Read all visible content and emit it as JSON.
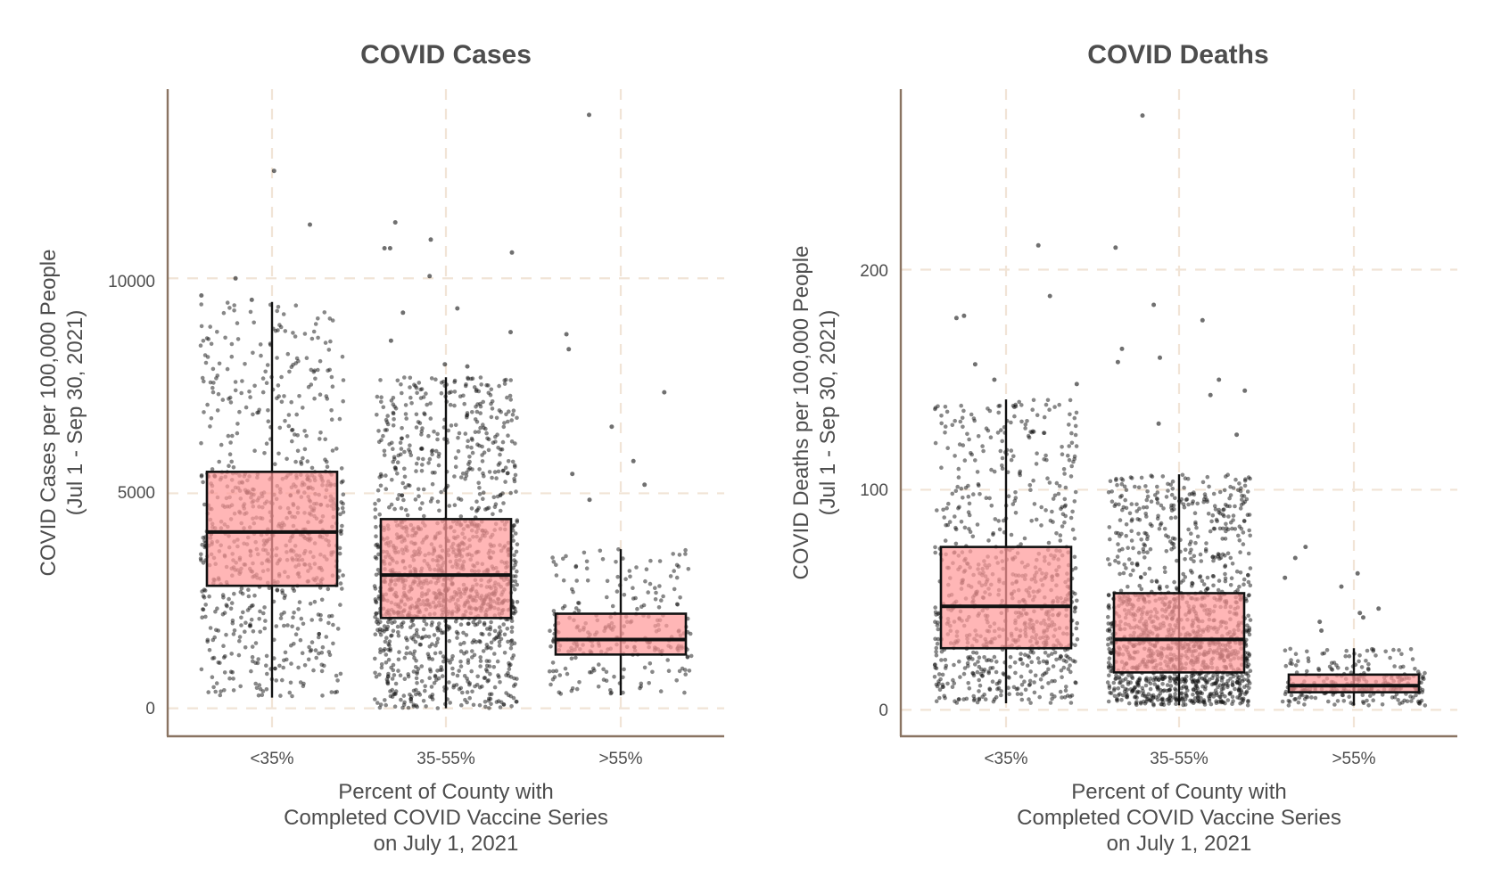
{
  "colors": {
    "box_fill": "#ff9a9a",
    "box_stroke": "#111111",
    "point": "#111111",
    "grid": "#f1e4d6",
    "axis": "#8a7462",
    "text": "#4d4d4d"
  },
  "chart_data": [
    {
      "type": "box",
      "title": "COVID Cases",
      "categories": [
        "<35%",
        "35-55%",
        ">55%"
      ],
      "xlabel_lines": [
        "Percent of County with",
        "Completed COVID Vaccine Series",
        "on July 1, 2021"
      ],
      "ylabel_lines": [
        "COVID Cases per 100,000 People",
        "(Jul 1 - Sep 30, 2021)"
      ],
      "yticks": [
        0,
        5000,
        10000
      ],
      "ytick_labels": [
        "0",
        "5000",
        "10000"
      ],
      "ylim": [
        -650,
        14400
      ],
      "grid": true,
      "jitter_points": true,
      "series": [
        {
          "name": "<35%",
          "q1": 2850,
          "median": 4100,
          "q3": 5500,
          "whisker_low": 250,
          "whisker_high": 9450,
          "outliers": [
            10000,
            12500,
            11250,
            9600,
            9500
          ],
          "n_points": 820
        },
        {
          "name": "35-55%",
          "q1": 2100,
          "median": 3100,
          "q3": 4400,
          "whisker_low": 0,
          "whisker_high": 7700,
          "outliers": [
            11300,
            10900,
            10700,
            10700,
            10600,
            10050,
            9300,
            9200,
            8750,
            8550,
            8000,
            7950
          ],
          "n_points": 1400
        },
        {
          "name": ">55%",
          "q1": 1250,
          "median": 1600,
          "q3": 2200,
          "whisker_low": 300,
          "whisker_high": 3700,
          "outliers": [
            13800,
            8700,
            8350,
            7350,
            6550,
            5750,
            5450,
            5200,
            4850
          ],
          "n_points": 260
        }
      ]
    },
    {
      "type": "box",
      "title": "COVID Deaths",
      "categories": [
        "<35%",
        "35-55%",
        ">55%"
      ],
      "xlabel_lines": [
        "Percent of County with",
        "Completed COVID Vaccine Series",
        "on July 1, 2021"
      ],
      "ylabel_lines": [
        "COVID Deaths per 100,000 People",
        "(Jul 1 - Sep 30, 2021)"
      ],
      "yticks": [
        0,
        100,
        200
      ],
      "ytick_labels": [
        "0",
        "100",
        "200"
      ],
      "ylim": [
        -12,
        282
      ],
      "grid": true,
      "jitter_points": true,
      "series": [
        {
          "name": "<35%",
          "q1": 28,
          "median": 47,
          "q3": 74,
          "whisker_low": 3,
          "whisker_high": 141,
          "outliers": [
            211,
            188,
            178,
            179,
            157,
            150,
            148
          ],
          "n_points": 820
        },
        {
          "name": "35-55%",
          "q1": 17,
          "median": 32,
          "q3": 53,
          "whisker_low": 2,
          "whisker_high": 107,
          "outliers": [
            270,
            210,
            184,
            177,
            164,
            160,
            158,
            150,
            145,
            143,
            130,
            125
          ],
          "n_points": 1400
        },
        {
          "name": ">55%",
          "q1": 8,
          "median": 11,
          "q3": 16,
          "whisker_low": 2,
          "whisker_high": 28,
          "outliers": [
            74,
            69,
            62,
            60,
            56,
            46,
            44,
            42,
            40,
            36
          ],
          "n_points": 260
        }
      ]
    }
  ]
}
